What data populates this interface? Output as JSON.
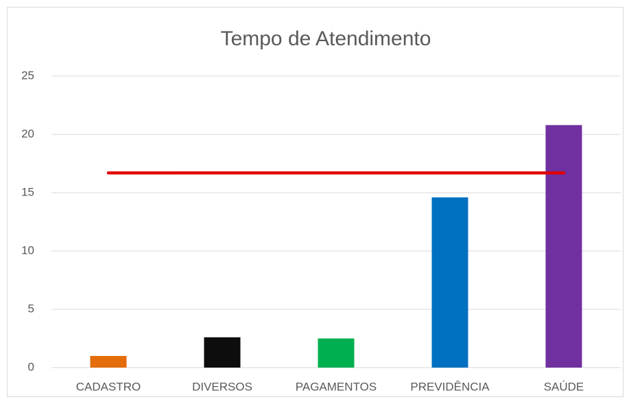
{
  "chart_data": {
    "type": "bar",
    "title": "Tempo de Atendimento",
    "categories": [
      "CADASTRO",
      "DIVERSOS",
      "PAGAMENTOS",
      "PREVIDÊNCIA",
      "SAÚDE"
    ],
    "series": [
      {
        "type": "bar",
        "colors": [
          "#e46c0a",
          "#0d0d0d",
          "#00b050",
          "#0070c0",
          "#7030a0"
        ],
        "values": [
          1.0,
          2.6,
          2.5,
          14.6,
          20.8
        ]
      },
      {
        "type": "line",
        "color": "#e00000",
        "values": [
          16.7,
          16.7,
          16.7,
          16.7,
          16.7
        ]
      }
    ],
    "ylim": [
      0,
      25
    ],
    "yticks": [
      0,
      5,
      10,
      15,
      20,
      25
    ],
    "grid": true
  }
}
